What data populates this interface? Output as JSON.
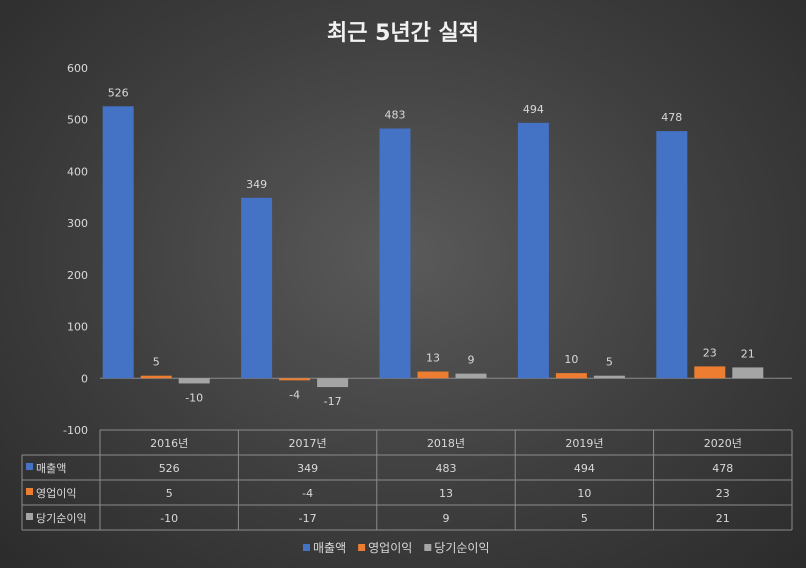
{
  "chart_data": {
    "type": "bar",
    "title": "최근 5년간 실적",
    "categories": [
      "2016년",
      "2017년",
      "2018년",
      "2019년",
      "2020년"
    ],
    "series": [
      {
        "name": "매출액",
        "values": [
          526,
          349,
          483,
          494,
          478
        ],
        "color": "#4472C4"
      },
      {
        "name": "영업이익",
        "values": [
          5,
          -4,
          13,
          10,
          23
        ],
        "color": "#ED7D31"
      },
      {
        "name": "당기순이익",
        "values": [
          -10,
          -17,
          9,
          5,
          21
        ],
        "color": "#A5A5A5"
      }
    ],
    "ylim": [
      -100,
      600
    ],
    "yticks": [
      -100,
      0,
      100,
      200,
      300,
      400,
      500,
      600
    ],
    "xlabel": "",
    "ylabel": "",
    "grid": false,
    "legend": "bottom",
    "data_table": true
  }
}
